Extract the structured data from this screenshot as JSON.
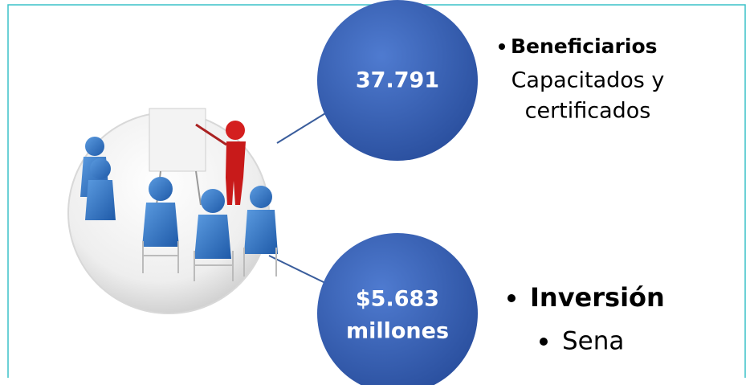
{
  "circles": [
    {
      "lines": [
        "37.791"
      ]
    },
    {
      "lines": [
        "$5.683",
        "millones"
      ]
    }
  ],
  "items": [
    {
      "heading": "Beneficiarios",
      "lines": [
        "Capacitados y",
        "certificados"
      ]
    },
    {
      "heading": "Inversión",
      "sub_item": "Sena"
    }
  ]
}
